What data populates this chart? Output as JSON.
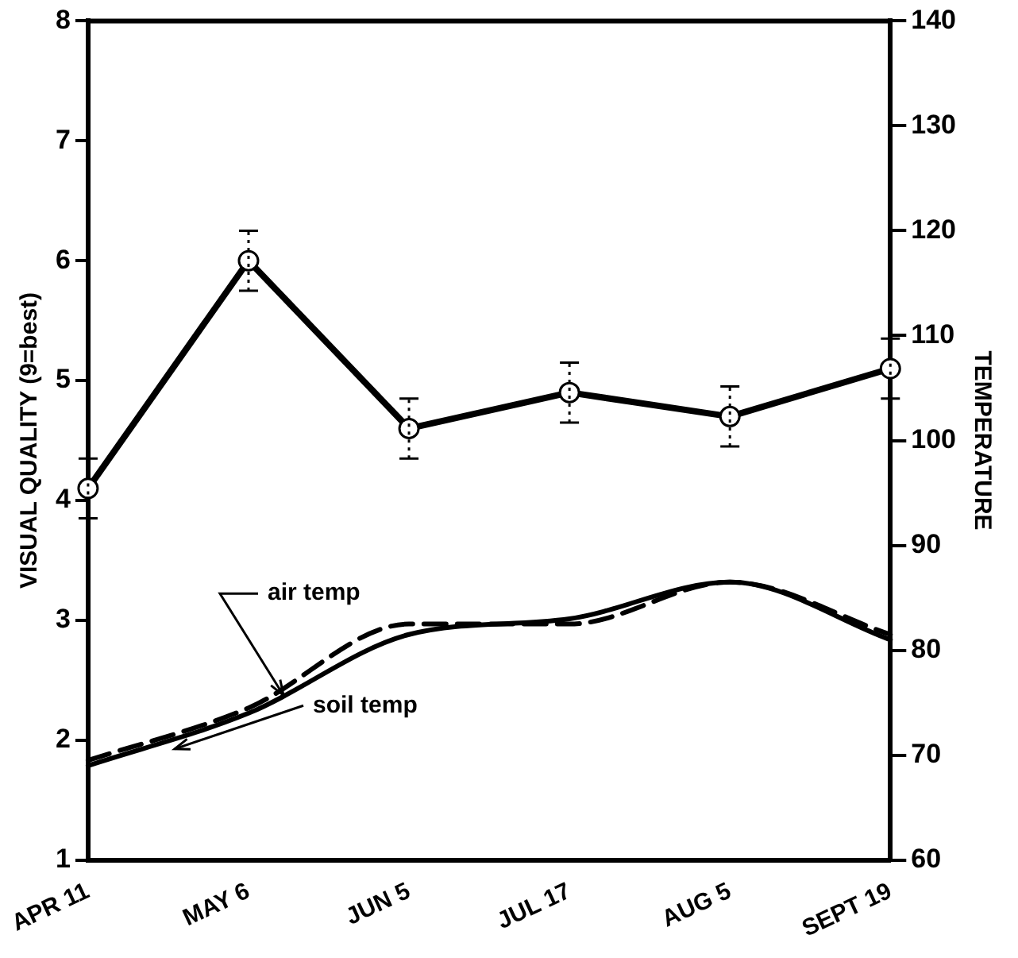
{
  "chart_data": {
    "type": "line",
    "categories": [
      "APR 11",
      "MAY 6",
      "JUN 5",
      "JUL 17",
      "AUG 5",
      "SEPT 19"
    ],
    "ylabel": "VISUAL QUALITY (9=best)",
    "y2label": "TEMPERATURE",
    "ylim": [
      1,
      8
    ],
    "yticks": [
      1,
      2,
      3,
      4,
      5,
      6,
      7,
      8
    ],
    "y2lim": [
      60,
      140
    ],
    "y2ticks": [
      60,
      70,
      80,
      90,
      100,
      110,
      120,
      130,
      140
    ],
    "grid": false,
    "legend": false,
    "series": [
      {
        "color": "#000000",
        "values": [
          4.1,
          6.0,
          4.6,
          4.9,
          4.7,
          5.1
        ],
        "errors": [
          0.25,
          0.25,
          0.25,
          0.25,
          0.25,
          0.25
        ],
        "marker": "circle",
        "line_style": "solid"
      },
      {
        "name": "air temp",
        "color": "#000000",
        "axis": "y2",
        "values": [
          69.5,
          74.5,
          82.5,
          82.5,
          86.5,
          81.5
        ],
        "marker": "none",
        "line_style": "dashed"
      },
      {
        "name": "soil temp",
        "color": "#000000",
        "axis": "y2",
        "values": [
          69,
          74,
          81.5,
          83,
          86.5,
          81
        ],
        "marker": "none",
        "line_style": "solid"
      }
    ]
  }
}
